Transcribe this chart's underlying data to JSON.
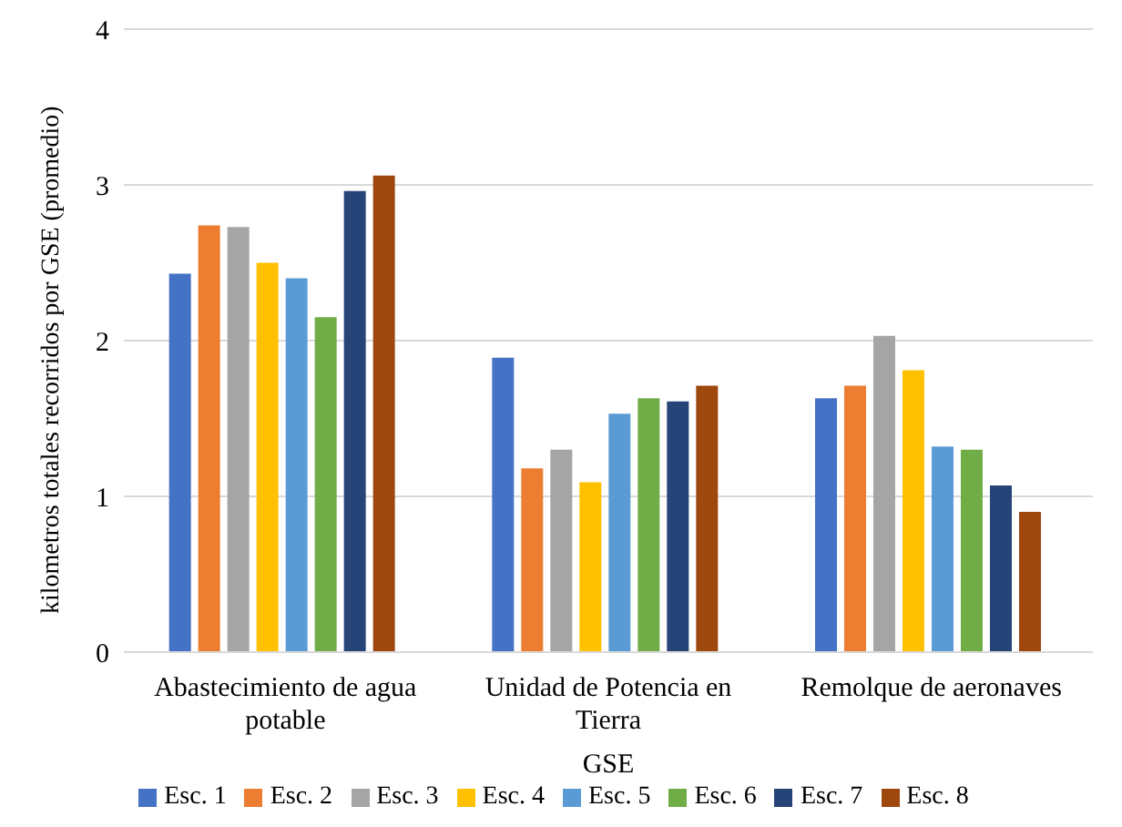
{
  "chart_data": {
    "type": "bar",
    "xlabel": "GSE",
    "ylabel": "kilometros totales recorridos por GSE (promedio)",
    "categories": [
      "Abastecimiento de agua potable",
      "Unidad de Potencia en Tierra",
      "Remolque de aeronaves"
    ],
    "series": [
      {
        "name": "Esc. 1",
        "color": "#4472c4",
        "values": [
          2.43,
          1.89,
          1.63
        ]
      },
      {
        "name": "Esc. 2",
        "color": "#ed7d31",
        "values": [
          2.74,
          1.18,
          1.71
        ]
      },
      {
        "name": "Esc. 3",
        "color": "#a5a5a5",
        "values": [
          2.73,
          1.3,
          2.03
        ]
      },
      {
        "name": "Esc. 4",
        "color": "#ffc000",
        "values": [
          2.5,
          1.09,
          1.81
        ]
      },
      {
        "name": "Esc. 5",
        "color": "#5b9bd5",
        "values": [
          2.4,
          1.53,
          1.32
        ]
      },
      {
        "name": "Esc. 6",
        "color": "#70ad47",
        "values": [
          2.15,
          1.63,
          1.3
        ]
      },
      {
        "name": "Esc. 7",
        "color": "#264478",
        "values": [
          2.96,
          1.61,
          1.07
        ]
      },
      {
        "name": "Esc. 8",
        "color": "#9e480e",
        "values": [
          3.06,
          1.71,
          0.9
        ]
      }
    ],
    "ylim": [
      0,
      4
    ],
    "yticks": [
      0,
      1,
      2,
      3,
      4
    ],
    "grid": "y",
    "legend": "bottom"
  }
}
